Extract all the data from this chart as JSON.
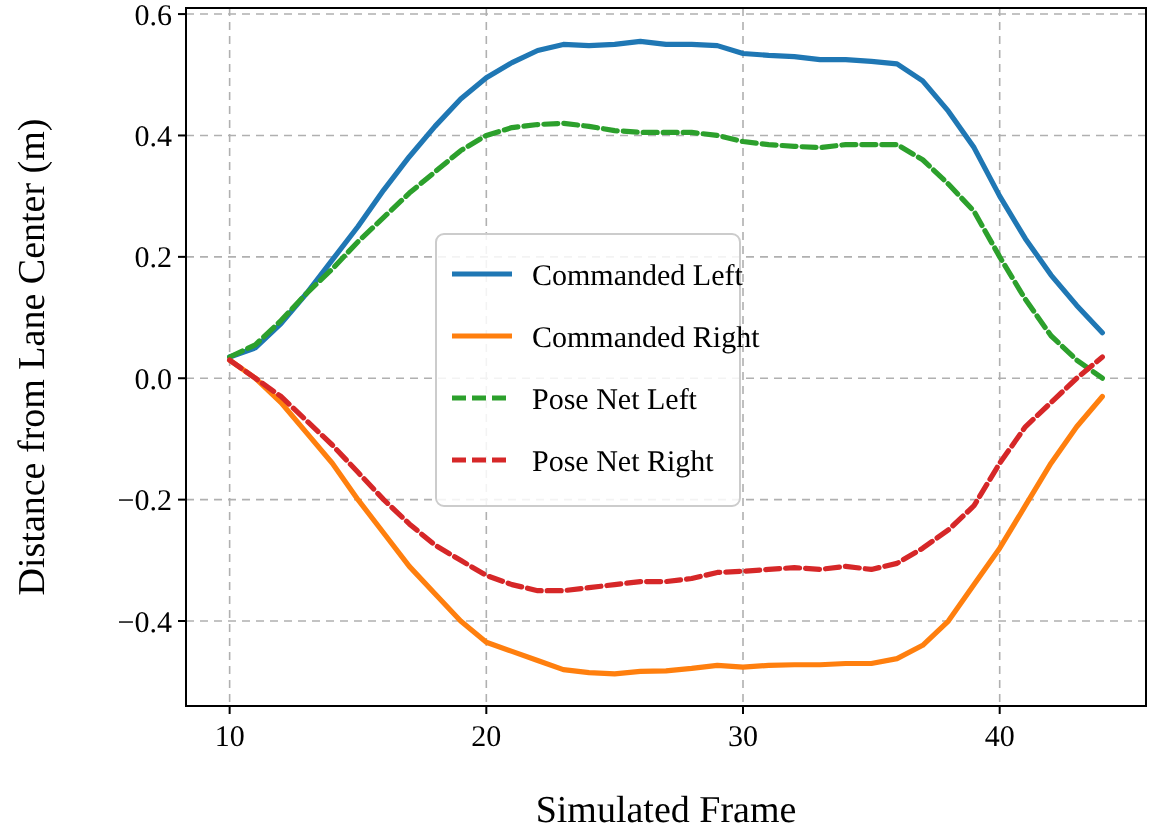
{
  "chart_data": {
    "type": "line",
    "xlabel": "Simulated Frame",
    "ylabel": "Distance from Lane Center (m)",
    "x": [
      10,
      11,
      12,
      13,
      14,
      15,
      16,
      17,
      18,
      19,
      20,
      21,
      22,
      23,
      24,
      25,
      26,
      27,
      28,
      29,
      30,
      31,
      32,
      33,
      34,
      35,
      36,
      37,
      38,
      39,
      40,
      41,
      42,
      43,
      44
    ],
    "xlim": [
      8.3,
      45.7
    ],
    "xticks": [
      10,
      20,
      30,
      40
    ],
    "ylim": [
      -0.54,
      0.61
    ],
    "yticks": [
      {
        "value": -0.4,
        "label": "−0.4"
      },
      {
        "value": -0.2,
        "label": "−0.2"
      },
      {
        "value": 0,
        "label": "0.0"
      },
      {
        "value": 0.2,
        "label": "0.2"
      },
      {
        "value": 0.4,
        "label": "0.4"
      },
      {
        "value": 0.6,
        "label": "0.6"
      }
    ],
    "grid": true,
    "legend": "center",
    "marker": "none",
    "series": [
      {
        "name": "Commanded Left",
        "color": "#1f77b4",
        "line_style": "solid",
        "values": [
          0.035,
          0.05,
          0.09,
          0.14,
          0.195,
          0.25,
          0.31,
          0.365,
          0.415,
          0.46,
          0.495,
          0.52,
          0.54,
          0.55,
          0.548,
          0.55,
          0.555,
          0.55,
          0.55,
          0.548,
          0.535,
          0.532,
          0.53,
          0.525,
          0.525,
          0.522,
          0.518,
          0.49,
          0.44,
          0.38,
          0.3,
          0.23,
          0.17,
          0.12,
          0.075
        ]
      },
      {
        "name": "Commanded Right",
        "color": "#ff7f0e",
        "line_style": "solid",
        "values": [
          0.03,
          0.0,
          -0.04,
          -0.09,
          -0.14,
          -0.2,
          -0.255,
          -0.31,
          -0.355,
          -0.4,
          -0.435,
          -0.45,
          -0.465,
          -0.48,
          -0.485,
          -0.487,
          -0.483,
          -0.482,
          -0.478,
          -0.473,
          -0.476,
          -0.473,
          -0.472,
          -0.472,
          -0.47,
          -0.47,
          -0.462,
          -0.44,
          -0.4,
          -0.34,
          -0.28,
          -0.21,
          -0.14,
          -0.08,
          -0.03
        ]
      },
      {
        "name": "Pose Net Left",
        "color": "#2ca02c",
        "line_style": "dashed",
        "values": [
          0.035,
          0.055,
          0.095,
          0.14,
          0.18,
          0.225,
          0.265,
          0.305,
          0.34,
          0.375,
          0.4,
          0.413,
          0.418,
          0.42,
          0.415,
          0.408,
          0.405,
          0.405,
          0.405,
          0.4,
          0.39,
          0.385,
          0.382,
          0.38,
          0.385,
          0.385,
          0.385,
          0.36,
          0.32,
          0.275,
          0.2,
          0.13,
          0.07,
          0.03,
          0.0
        ]
      },
      {
        "name": "Pose Net Right",
        "color": "#d62728",
        "line_style": "dashed",
        "values": [
          0.03,
          0.0,
          -0.03,
          -0.07,
          -0.11,
          -0.155,
          -0.2,
          -0.24,
          -0.275,
          -0.3,
          -0.325,
          -0.34,
          -0.35,
          -0.35,
          -0.345,
          -0.34,
          -0.335,
          -0.335,
          -0.33,
          -0.32,
          -0.318,
          -0.315,
          -0.312,
          -0.315,
          -0.31,
          -0.315,
          -0.305,
          -0.28,
          -0.25,
          -0.21,
          -0.14,
          -0.08,
          -0.04,
          0.0,
          0.035
        ]
      }
    ]
  }
}
